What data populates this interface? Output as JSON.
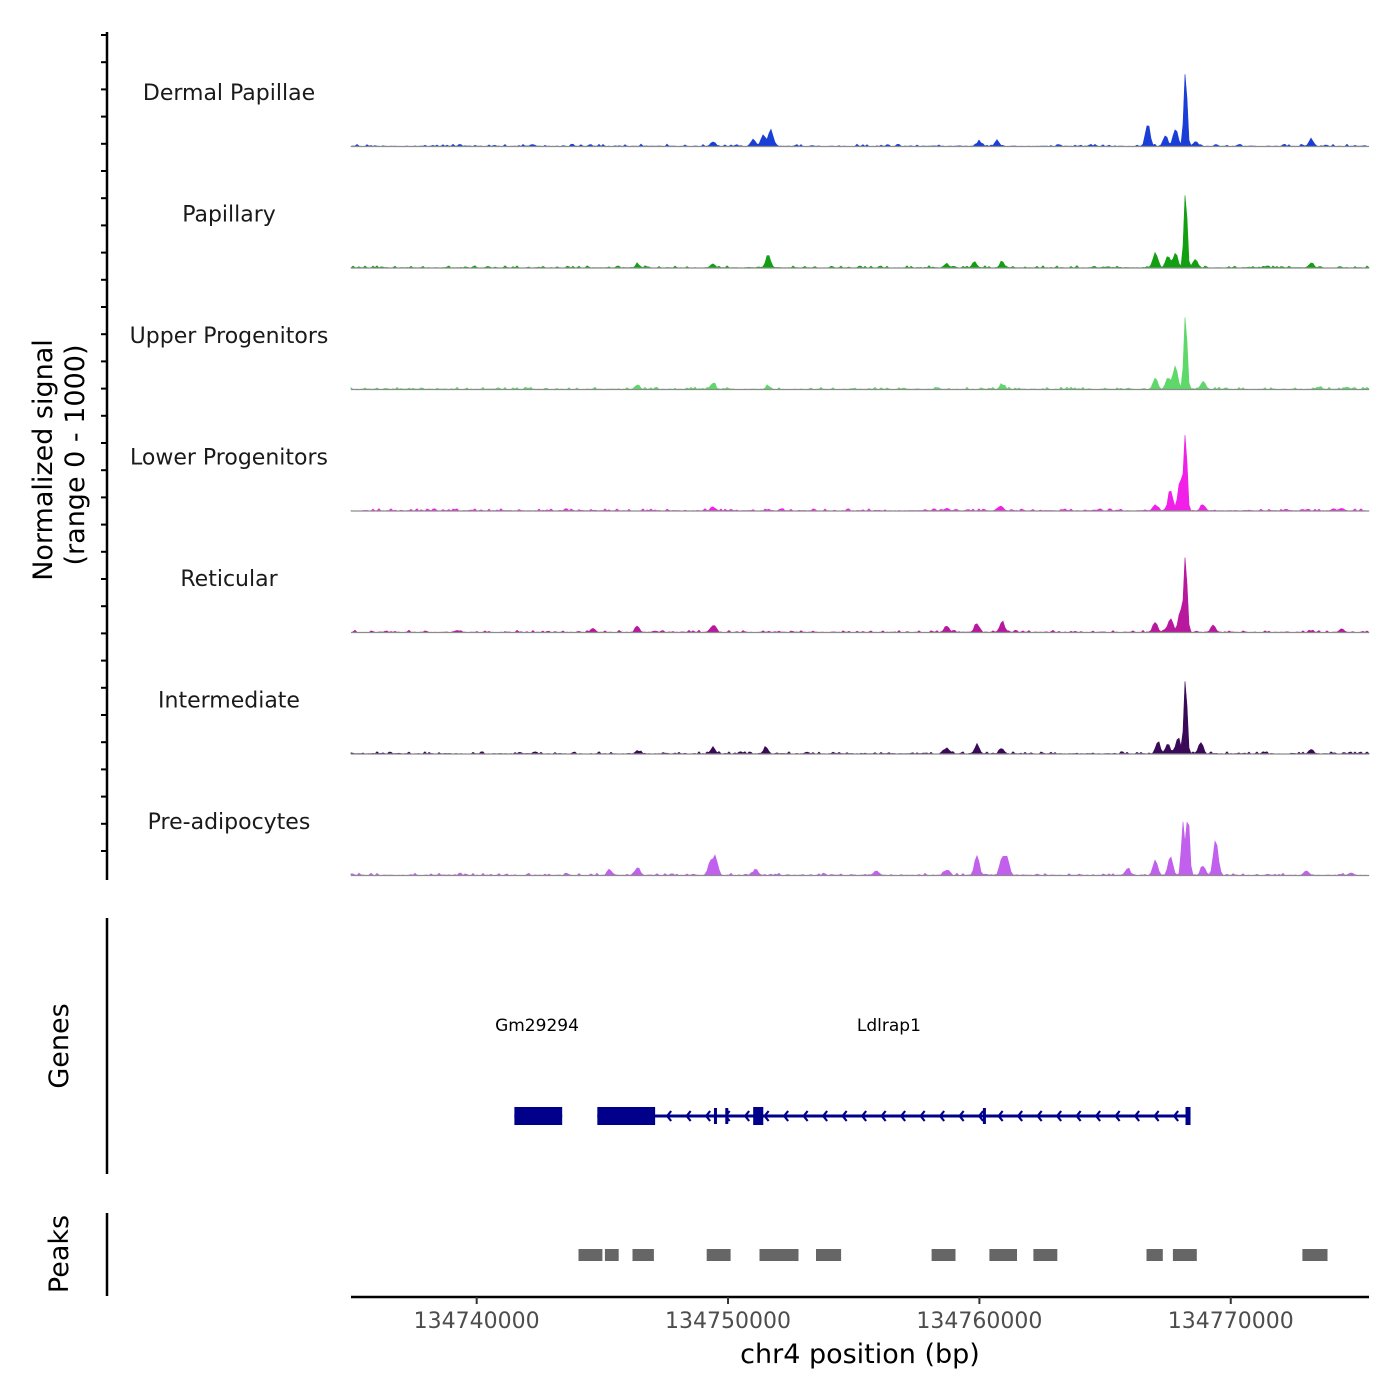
{
  "chart_data": {
    "type": "area",
    "title": "",
    "chrom": "chr4",
    "xlabel": "chr4 position (bp)",
    "ylabel_line1": "Normalized signal",
    "ylabel_line2": "(range 0 - 1000)",
    "xlim": [
      134735000,
      134775500
    ],
    "ylim": [
      0,
      1000
    ],
    "x_ticks": [
      134740000,
      134750000,
      134760000,
      134770000
    ],
    "x_tick_labels": [
      "134740000",
      "134750000",
      "134760000",
      "134770000"
    ],
    "genes_title": "Genes",
    "peaks_title": "Peaks",
    "series": [
      {
        "name": "Dermal Papillae",
        "color": "#1a3fd6",
        "peaks": [
          [
            134749400,
            60
          ],
          [
            134751000,
            90
          ],
          [
            134751400,
            150
          ],
          [
            134751700,
            220
          ],
          [
            134760000,
            60
          ],
          [
            134760700,
            70
          ],
          [
            134766700,
            280
          ],
          [
            134767400,
            140
          ],
          [
            134767800,
            220
          ],
          [
            134768200,
            1000
          ],
          [
            134768600,
            60
          ],
          [
            134773200,
            90
          ]
        ]
      },
      {
        "name": "Papillary",
        "color": "#12a012",
        "peaks": [
          [
            134746400,
            40
          ],
          [
            134749400,
            50
          ],
          [
            134751600,
            170
          ],
          [
            134758700,
            50
          ],
          [
            134759800,
            80
          ],
          [
            134760900,
            70
          ],
          [
            134767000,
            200
          ],
          [
            134767500,
            150
          ],
          [
            134767800,
            190
          ],
          [
            134768200,
            1000
          ],
          [
            134768600,
            90
          ],
          [
            134773200,
            60
          ]
        ]
      },
      {
        "name": "Upper Progenitors",
        "color": "#5fd86a",
        "peaks": [
          [
            134746400,
            60
          ],
          [
            134749400,
            80
          ],
          [
            134751600,
            40
          ],
          [
            134760900,
            60
          ],
          [
            134767000,
            150
          ],
          [
            134767500,
            140
          ],
          [
            134767800,
            300
          ],
          [
            134768200,
            1000
          ],
          [
            134768900,
            100
          ],
          [
            134773500,
            30
          ]
        ]
      },
      {
        "name": "Lower Progenitors",
        "color": "#f020e8",
        "peaks": [
          [
            134749400,
            50
          ],
          [
            134758700,
            30
          ],
          [
            134760800,
            50
          ],
          [
            134767000,
            80
          ],
          [
            134767600,
            270
          ],
          [
            134768000,
            400
          ],
          [
            134768200,
            1000
          ],
          [
            134768900,
            80
          ],
          [
            134774400,
            30
          ]
        ]
      },
      {
        "name": "Reticular",
        "color": "#b8189e",
        "peaks": [
          [
            134744600,
            40
          ],
          [
            134746400,
            60
          ],
          [
            134749400,
            90
          ],
          [
            134758700,
            80
          ],
          [
            134759900,
            110
          ],
          [
            134760900,
            130
          ],
          [
            134767000,
            130
          ],
          [
            134767600,
            180
          ],
          [
            134768000,
            280
          ],
          [
            134768200,
            1000
          ],
          [
            134769300,
            100
          ],
          [
            134774400,
            30
          ]
        ]
      },
      {
        "name": "Intermediate",
        "color": "#3a0a58",
        "peaks": [
          [
            134746400,
            40
          ],
          [
            134749400,
            80
          ],
          [
            134751500,
            80
          ],
          [
            134758700,
            80
          ],
          [
            134759900,
            110
          ],
          [
            134760900,
            60
          ],
          [
            134767100,
            150
          ],
          [
            134767500,
            120
          ],
          [
            134767900,
            200
          ],
          [
            134768200,
            1000
          ],
          [
            134768800,
            150
          ],
          [
            134773200,
            60
          ]
        ]
      },
      {
        "name": "Pre-adipocytes",
        "color": "#c060ec",
        "peaks": [
          [
            134745300,
            60
          ],
          [
            134746400,
            100
          ],
          [
            134749300,
            180
          ],
          [
            134749500,
            220
          ],
          [
            134751100,
            80
          ],
          [
            134755900,
            60
          ],
          [
            134758700,
            70
          ],
          [
            134759900,
            260
          ],
          [
            134760900,
            220
          ],
          [
            134761100,
            230
          ],
          [
            134765900,
            90
          ],
          [
            134767000,
            200
          ],
          [
            134767600,
            250
          ],
          [
            134768100,
            700
          ],
          [
            134768300,
            800
          ],
          [
            134768900,
            120
          ],
          [
            134769400,
            470
          ],
          [
            134773000,
            60
          ],
          [
            134774800,
            30
          ]
        ]
      }
    ],
    "genes": [
      {
        "name": "Gm29294",
        "label_x": 134742400,
        "start": 134741500,
        "end": 134743400,
        "blocks": [
          [
            134741500,
            134743400
          ]
        ],
        "strand": "+"
      },
      {
        "name": "Ldlrap1",
        "label_x": 134756400,
        "start": 134744800,
        "end": 134768300,
        "blocks": [
          [
            134744800,
            134747100
          ],
          [
            134751000,
            134751400
          ]
        ],
        "strand": "-"
      }
    ],
    "peak_regions": [
      [
        134744050,
        134745000
      ],
      [
        134745100,
        134745650
      ],
      [
        134746200,
        134747050
      ],
      [
        134749150,
        134750100
      ],
      [
        134751250,
        134752800
      ],
      [
        134753500,
        134754500
      ],
      [
        134758100,
        134759050
      ],
      [
        134760400,
        134761500
      ],
      [
        134762150,
        134763100
      ],
      [
        134766650,
        134767300
      ],
      [
        134767700,
        134768650
      ],
      [
        134772850,
        134773850
      ]
    ]
  }
}
